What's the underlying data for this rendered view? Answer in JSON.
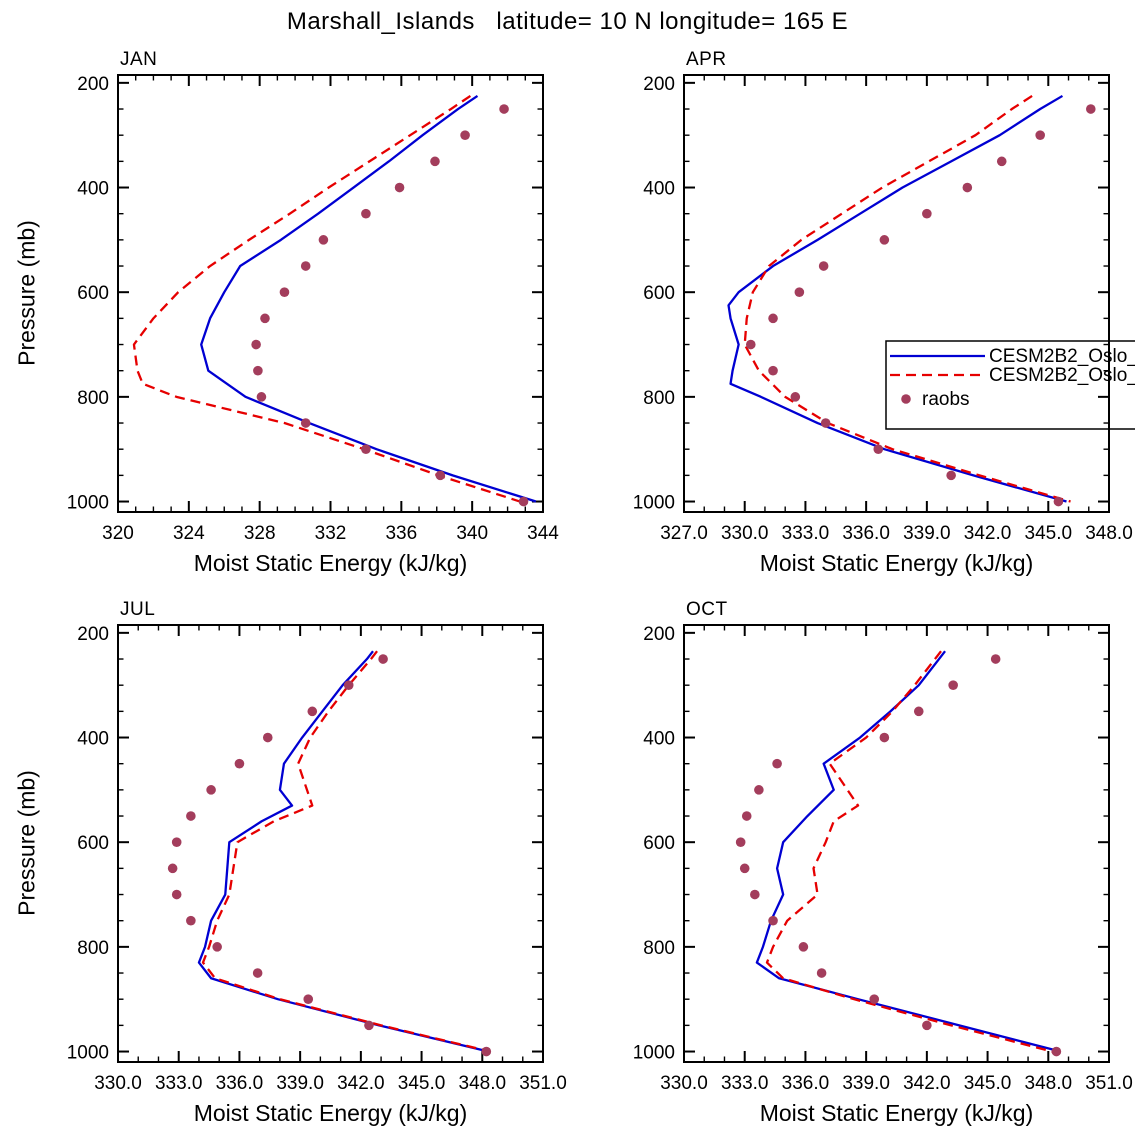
{
  "title": "Marshall_Islands   latitude= 10 N longitude= 165 E",
  "legend": {
    "entries": [
      {
        "label": "CESM2B2_Oslo_",
        "type": "line",
        "style": "solid",
        "color": "#0000d2"
      },
      {
        "label": "CESM2B2_Oslo_",
        "type": "line",
        "style": "dashed",
        "color": "#e60000"
      },
      {
        "label": "raobs",
        "type": "dot",
        "style": "dots",
        "color": "#a33d5c"
      }
    ]
  },
  "colors": {
    "model_solid": "#0000d2",
    "model_dashed": "#e60000",
    "raobs": "#a33d5c",
    "axis": "#000000"
  },
  "chart_data": [
    {
      "type": "line",
      "title": "JAN",
      "xlabel": "Moist Static Energy (kJ/kg)",
      "ylabel": "Pressure (mb)",
      "xlim": [
        320,
        344
      ],
      "ylim": [
        1000,
        200
      ],
      "xticks": [
        320,
        324,
        328,
        332,
        336,
        340,
        344
      ],
      "xtick_labels": [
        "320",
        "324",
        "328",
        "332",
        "336",
        "340",
        "344"
      ],
      "yticks": [
        200,
        400,
        600,
        800,
        1000
      ],
      "x_minor_step": 1,
      "y_minor_step": 50,
      "series": [
        {
          "name": "CESM2B2_Oslo_",
          "style": "solid",
          "color": "#0000d2",
          "pressure": [
            225,
            250,
            300,
            350,
            400,
            450,
            500,
            550,
            600,
            650,
            700,
            750,
            800,
            850,
            900,
            950,
            1000
          ],
          "values": [
            340.3,
            339.2,
            337.2,
            335.3,
            333.3,
            331.3,
            329.2,
            326.9,
            326.0,
            325.2,
            324.7,
            325.1,
            327.2,
            330.8,
            334.6,
            338.9,
            343.6
          ]
        },
        {
          "name": "CESM2B2_Oslo_",
          "style": "dashed",
          "color": "#e60000",
          "pressure": [
            225,
            250,
            300,
            350,
            400,
            450,
            500,
            550,
            600,
            650,
            700,
            750,
            775,
            800,
            850,
            900,
            950,
            1000
          ],
          "values": [
            339.9,
            338.8,
            336.5,
            334.2,
            331.9,
            329.7,
            327.4,
            325.2,
            323.4,
            322.0,
            320.9,
            321.1,
            321.4,
            323.3,
            329.4,
            333.9,
            338.1,
            342.7
          ]
        },
        {
          "name": "raobs",
          "style": "dots",
          "color": "#a33d5c",
          "pressure": [
            250,
            300,
            350,
            400,
            450,
            500,
            550,
            600,
            650,
            700,
            750,
            800,
            850,
            900,
            950,
            1000
          ],
          "values": [
            341.8,
            339.6,
            337.9,
            335.9,
            334.0,
            331.6,
            330.6,
            329.4,
            328.3,
            327.8,
            327.9,
            328.1,
            330.6,
            334.0,
            338.2,
            342.9
          ]
        }
      ]
    },
    {
      "type": "line",
      "title": "APR",
      "xlabel": "Moist Static Energy (kJ/kg)",
      "ylabel": "Pressure (mb)",
      "xlim": [
        327,
        348
      ],
      "ylim": [
        1000,
        200
      ],
      "xticks": [
        327,
        330,
        333,
        336,
        339,
        342,
        345,
        348
      ],
      "xtick_labels": [
        "327.0",
        "330.0",
        "333.0",
        "336.0",
        "339.0",
        "342.0",
        "345.0",
        "348.0"
      ],
      "yticks": [
        200,
        400,
        600,
        800,
        1000
      ],
      "x_minor_step": 1,
      "y_minor_step": 50,
      "series": [
        {
          "name": "CESM2B2_Oslo_",
          "style": "solid",
          "color": "#0000d2",
          "pressure": [
            225,
            250,
            300,
            350,
            400,
            450,
            500,
            550,
            600,
            625,
            650,
            700,
            750,
            775,
            800,
            850,
            900,
            950,
            1000
          ],
          "values": [
            345.7,
            344.6,
            342.6,
            340.2,
            337.8,
            335.7,
            333.6,
            331.4,
            329.7,
            329.2,
            329.3,
            329.7,
            329.4,
            329.3,
            330.8,
            333.6,
            336.9,
            341.3,
            345.9
          ]
        },
        {
          "name": "CESM2B2_Oslo_",
          "style": "dashed",
          "color": "#e60000",
          "pressure": [
            225,
            250,
            300,
            350,
            400,
            450,
            500,
            550,
            600,
            650,
            700,
            750,
            800,
            850,
            900,
            950,
            1000
          ],
          "values": [
            344.2,
            343.2,
            341.4,
            339.1,
            336.8,
            334.8,
            332.8,
            331.2,
            330.4,
            330.1,
            330.0,
            330.7,
            332.0,
            334.1,
            337.3,
            341.6,
            346.1
          ]
        },
        {
          "name": "raobs",
          "style": "dots",
          "color": "#a33d5c",
          "pressure": [
            250,
            300,
            350,
            400,
            450,
            500,
            550,
            600,
            650,
            700,
            750,
            800,
            850,
            900,
            950,
            1000
          ],
          "values": [
            347.1,
            344.6,
            342.7,
            341.0,
            339.0,
            336.9,
            333.9,
            332.7,
            331.4,
            330.3,
            331.4,
            332.5,
            334.0,
            336.6,
            340.2,
            345.5
          ]
        }
      ]
    },
    {
      "type": "line",
      "title": "JUL",
      "xlabel": "Moist Static Energy (kJ/kg)",
      "ylabel": "Pressure (mb)",
      "xlim": [
        330,
        351
      ],
      "ylim": [
        1000,
        200
      ],
      "xticks": [
        330,
        333,
        336,
        339,
        342,
        345,
        348,
        351
      ],
      "xtick_labels": [
        "330.0",
        "333.0",
        "336.0",
        "339.0",
        "342.0",
        "345.0",
        "348.0",
        "351.0"
      ],
      "yticks": [
        200,
        400,
        600,
        800,
        1000
      ],
      "x_minor_step": 1,
      "y_minor_step": 50,
      "series": [
        {
          "name": "CESM2B2_Oslo_",
          "style": "solid",
          "color": "#0000d2",
          "pressure": [
            235,
            250,
            300,
            350,
            400,
            450,
            500,
            530,
            560,
            600,
            650,
            700,
            750,
            800,
            830,
            860,
            900,
            950,
            1000
          ],
          "values": [
            342.6,
            342.3,
            341.1,
            340.1,
            339.1,
            338.2,
            338.0,
            338.6,
            337.1,
            335.5,
            335.4,
            335.3,
            334.6,
            334.3,
            334.0,
            334.6,
            337.9,
            342.9,
            348.3
          ]
        },
        {
          "name": "CESM2B2_Oslo_",
          "style": "dashed",
          "color": "#e60000",
          "pressure": [
            235,
            250,
            300,
            350,
            400,
            450,
            530,
            560,
            600,
            650,
            700,
            750,
            800,
            830,
            860,
            900,
            950,
            1000
          ],
          "values": [
            342.8,
            342.5,
            341.4,
            340.4,
            339.5,
            338.9,
            339.6,
            337.7,
            335.9,
            335.7,
            335.5,
            334.9,
            334.5,
            334.2,
            334.8,
            338.0,
            343.0,
            348.4
          ]
        },
        {
          "name": "raobs",
          "style": "dots",
          "color": "#a33d5c",
          "pressure": [
            250,
            300,
            350,
            400,
            450,
            500,
            550,
            600,
            650,
            700,
            750,
            800,
            850,
            900,
            950,
            1000
          ],
          "values": [
            343.1,
            341.4,
            339.6,
            337.4,
            336.0,
            334.6,
            333.6,
            332.9,
            332.7,
            332.9,
            333.6,
            334.9,
            336.9,
            339.4,
            342.4,
            348.2
          ]
        }
      ]
    },
    {
      "type": "line",
      "title": "OCT",
      "xlabel": "Moist Static Energy (kJ/kg)",
      "ylabel": "Pressure (mb)",
      "xlim": [
        330,
        351
      ],
      "ylim": [
        1000,
        200
      ],
      "xticks": [
        330,
        333,
        336,
        339,
        342,
        345,
        348,
        351
      ],
      "xtick_labels": [
        "330.0",
        "333.0",
        "336.0",
        "339.0",
        "342.0",
        "345.0",
        "348.0",
        "351.0"
      ],
      "yticks": [
        200,
        400,
        600,
        800,
        1000
      ],
      "x_minor_step": 1,
      "y_minor_step": 50,
      "series": [
        {
          "name": "CESM2B2_Oslo_",
          "style": "solid",
          "color": "#0000d2",
          "pressure": [
            235,
            250,
            300,
            350,
            400,
            450,
            500,
            550,
            600,
            650,
            700,
            750,
            800,
            830,
            860,
            900,
            950,
            1000
          ],
          "values": [
            342.9,
            342.6,
            341.6,
            340.2,
            338.7,
            336.9,
            337.4,
            336.1,
            334.9,
            334.6,
            334.9,
            334.3,
            333.9,
            333.6,
            334.7,
            338.6,
            343.6,
            348.6
          ]
        },
        {
          "name": "CESM2B2_Oslo_",
          "style": "dashed",
          "color": "#e60000",
          "pressure": [
            235,
            250,
            300,
            350,
            400,
            450,
            530,
            560,
            600,
            650,
            700,
            750,
            800,
            830,
            860,
            900,
            950,
            1000
          ],
          "values": [
            342.7,
            342.4,
            341.4,
            340.3,
            339.0,
            337.2,
            338.6,
            337.4,
            337.0,
            336.4,
            336.6,
            335.1,
            334.4,
            334.1,
            334.9,
            338.4,
            343.2,
            348.2
          ]
        },
        {
          "name": "raobs",
          "style": "dots",
          "color": "#a33d5c",
          "pressure": [
            250,
            300,
            350,
            400,
            450,
            500,
            550,
            600,
            650,
            700,
            750,
            800,
            850,
            900,
            950,
            1000
          ],
          "values": [
            345.4,
            343.3,
            341.6,
            339.9,
            334.6,
            333.7,
            333.1,
            332.8,
            333.0,
            333.5,
            334.4,
            335.9,
            336.8,
            339.4,
            342.0,
            348.4
          ]
        }
      ]
    }
  ]
}
